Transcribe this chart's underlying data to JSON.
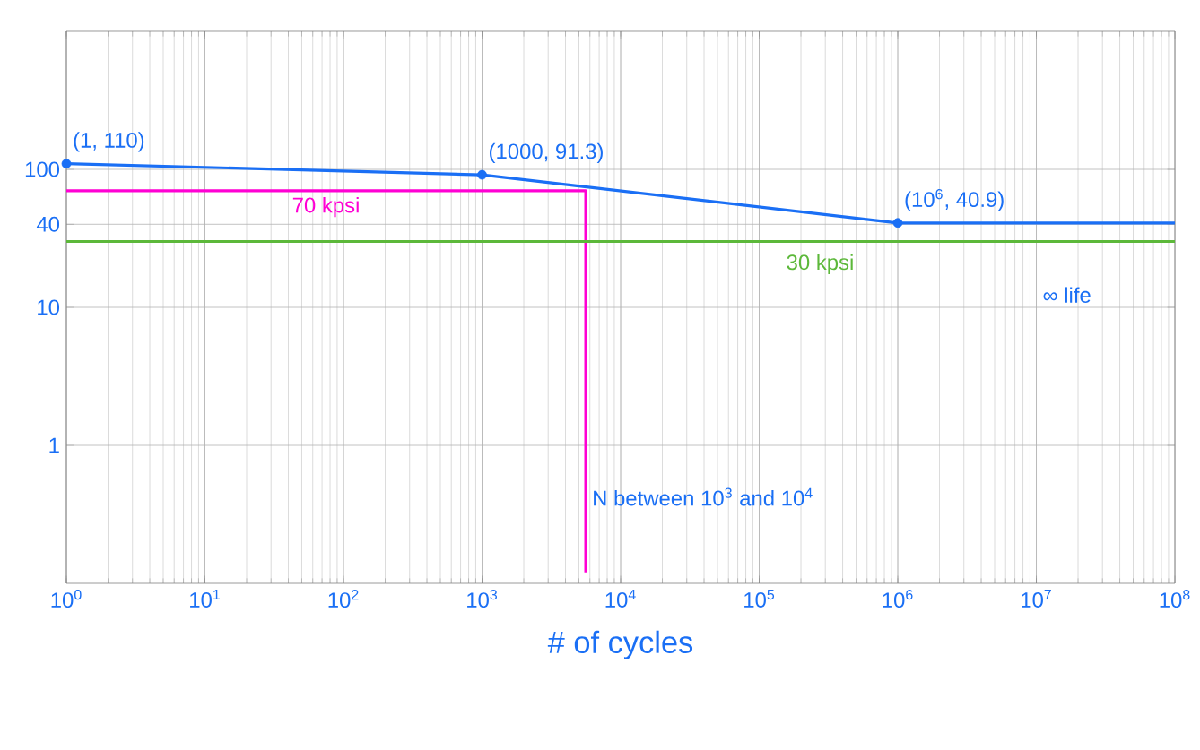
{
  "chart_data": {
    "type": "line",
    "xlabel": "# of cycles",
    "log": "xy",
    "grid": true,
    "xlim": [
      1,
      100000000
    ],
    "ylim": [
      0.1,
      1000
    ],
    "xticks": [
      {
        "value": 1,
        "label": "10$^{0}$"
      },
      {
        "value": 10,
        "label": "10$^{1}$"
      },
      {
        "value": 100,
        "label": "10$^{2}$"
      },
      {
        "value": 1000,
        "label": "10$^{3}$"
      },
      {
        "value": 10000,
        "label": "10$^{4}$"
      },
      {
        "value": 100000,
        "label": "10$^{5}$"
      },
      {
        "value": 1000000,
        "label": "10$^{6}$"
      },
      {
        "value": 10000000,
        "label": "10$^{7}$"
      },
      {
        "value": 100000000,
        "label": "10$^{8}$"
      }
    ],
    "yticks": [
      1,
      10,
      40,
      100
    ],
    "series": [
      {
        "color": "#1a6ff5",
        "x": [
          1,
          1000,
          1000000,
          100000000
        ],
        "values": [
          110,
          91.3,
          40.9,
          40.9
        ],
        "marker": "none"
      },
      {
        "type": "scatter",
        "color": "#1a6ff5",
        "x": [
          1,
          1000,
          1000000
        ],
        "values": [
          110,
          91.3,
          40.9
        ],
        "marker": "circle"
      },
      {
        "name": "70 kpsi",
        "color": "#ff00d4",
        "x": [
          1,
          5600,
          5600
        ],
        "values": [
          70,
          70,
          0.12
        ],
        "marker": "none"
      }
    ],
    "ref_lines": [
      {
        "axis": "y",
        "value": 30,
        "label": "30 kpsi",
        "color": "#5cb83a"
      }
    ],
    "annotations": [
      {
        "text": "(1, 110)",
        "x": 1,
        "y": 110
      },
      {
        "text": "(1000, 91.3)",
        "x": 1000,
        "y": 91.3
      },
      {
        "text": "(10$^{6}$, 40.9)",
        "x": 1000000,
        "y": 40.9
      },
      {
        "text": "N between 10$^{3}$ and 10$^{4}$",
        "x": 5600,
        "y": 0.3
      },
      {
        "text": "∞ life",
        "x": 10000000,
        "y": 30
      }
    ]
  }
}
